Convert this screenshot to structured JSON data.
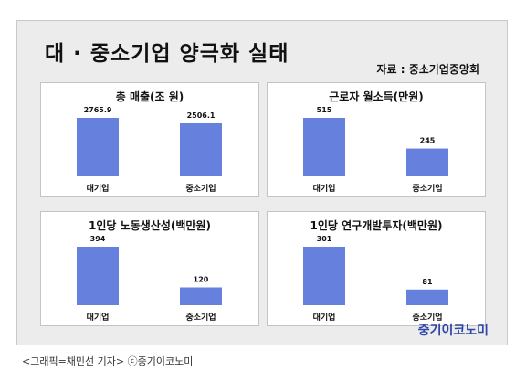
{
  "title": "대 · 중소기업 양극화 실태",
  "source": "자료 : 중소기업중앙회",
  "brand": "중기이코노미",
  "caption": "<그래픽=채민선 기자>   ⓒ중기이코노미",
  "colors": {
    "bar": "#6680de",
    "panel_bg": "#ffffff",
    "frame_bg": "#ececec",
    "brand": "#2e46a8"
  },
  "chart_data": [
    {
      "type": "bar",
      "title": "총 매출(조 원)",
      "categories": [
        "대기업",
        "중소기업"
      ],
      "values": [
        2765.9,
        2506.1
      ],
      "value_labels": [
        "2765.9",
        "2506.1"
      ]
    },
    {
      "type": "bar",
      "title": "근로자 월소득(만원)",
      "categories": [
        "대기업",
        "중소기업"
      ],
      "values": [
        515,
        245
      ],
      "value_labels": [
        "515",
        "245"
      ]
    },
    {
      "type": "bar",
      "title": "1인당 노동생산성(백만원)",
      "categories": [
        "대기업",
        "중소기업"
      ],
      "values": [
        394,
        120
      ],
      "value_labels": [
        "394",
        "120"
      ]
    },
    {
      "type": "bar",
      "title": "1인당 연구개발투자(백만원)",
      "categories": [
        "대기업",
        "중소기업"
      ],
      "values": [
        301,
        81
      ],
      "value_labels": [
        "301",
        "81"
      ]
    }
  ]
}
